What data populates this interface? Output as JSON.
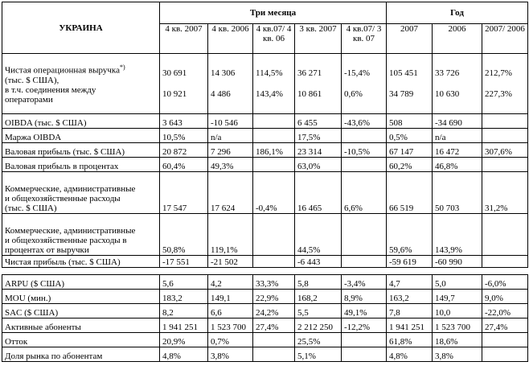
{
  "title": "УКРАИНА",
  "groups": {
    "three_months": "Три месяца",
    "year": "Год"
  },
  "columns": [
    "4 кв. 2007",
    "4 кв. 2006",
    "4 кв.07/ 4 кв. 06",
    "3 кв. 2007",
    "4 кв.07/ 3 кв. 07",
    "2007",
    "2006",
    "2007/ 2006"
  ],
  "revenue": {
    "label1": "Чистая операционная выручка",
    "footnote": "*)",
    "label2": "(тыс. $ США),",
    "label3": "в т.ч. соединения между",
    "label4": "операторами",
    "values_total": [
      "30 691",
      "14 306",
      "114,5%",
      "36 271",
      "-15,4%",
      "105 451",
      "33 726",
      "212,7%"
    ],
    "values_interconnect": [
      "10 921",
      "4 486",
      "143,4%",
      "10 861",
      "0,6%",
      "34 789",
      "10 630",
      "227,3%"
    ]
  },
  "rows": [
    {
      "label": "OIBDA (тыс. $ США)",
      "values": [
        "3 643",
        "-10 546",
        "",
        "6 455",
        "-43,6%",
        "508",
        "-34 690",
        ""
      ]
    },
    {
      "label": "Маржа OIBDA",
      "values": [
        "10,5%",
        "n/a",
        "",
        "17,5%",
        "",
        "0,5%",
        "n/a",
        ""
      ]
    },
    {
      "label": "Валовая прибыль (тыс. $ США)",
      "values": [
        "20 872",
        "7 296",
        "186,1%",
        "23 314",
        "-10,5%",
        "67 147",
        "16 472",
        "307,6%"
      ]
    },
    {
      "label": "Валовая прибыль в процентах",
      "values": [
        "60,4%",
        "49,3%",
        "",
        "63,0%",
        "",
        "60,2%",
        "46,8%",
        ""
      ]
    }
  ],
  "sga": {
    "label1": "Коммерческие, административные",
    "label2": "и общехозяйственные расходы",
    "label3": "(тыс. $ США)",
    "values": [
      "17 547",
      "17 624",
      "-0,4%",
      "16 465",
      "6,6%",
      "66 519",
      "50 703",
      "31,2%"
    ]
  },
  "sga_pct": {
    "label1": "Коммерческие, административные",
    "label2": "и общехозяйственные расходы в",
    "label3": "процентах от выручки",
    "values": [
      "50,8%",
      "119,1%",
      "",
      "44,5%",
      "",
      "59,6%",
      "143,9%",
      ""
    ]
  },
  "net_profit": {
    "label": "Чистая прибыль (тыс. $ США)",
    "values": [
      "-17 551",
      "-21 502",
      "",
      "-6 443",
      "",
      "-59 619",
      "-60 990",
      ""
    ]
  },
  "ops_rows": [
    {
      "label": "ARPU ($ США)",
      "values": [
        "5,6",
        "4,2",
        "33,3%",
        "5,8",
        "-3,4%",
        "4,7",
        "5,0",
        "-6,0%"
      ]
    },
    {
      "label": "MOU (мин.)",
      "values": [
        "183,2",
        "149,1",
        "22,9%",
        "168,2",
        "8,9%",
        "163,2",
        "149,7",
        "9,0%"
      ]
    },
    {
      "label": "SAC ($ США)",
      "values": [
        "8,2",
        "6,6",
        "24,2%",
        "5,5",
        "49,1%",
        "7,8",
        "10,0",
        "-22,0%"
      ]
    },
    {
      "label": "Активные абоненты",
      "values": [
        "1 941 251",
        "1 523 700",
        "27,4%",
        "2 212 250",
        "-12,2%",
        "1 941 251",
        "1 523 700",
        "27,4%"
      ]
    },
    {
      "label": "Отток",
      "values": [
        "20,9%",
        "0,7%",
        "",
        "25,5%",
        "",
        "61,8%",
        "18,6%",
        ""
      ]
    },
    {
      "label": "Доля рынка по абонентам",
      "values": [
        "4,8%",
        "3,8%",
        "",
        "5,1%",
        "",
        "4,8%",
        "3,8%",
        ""
      ]
    }
  ]
}
